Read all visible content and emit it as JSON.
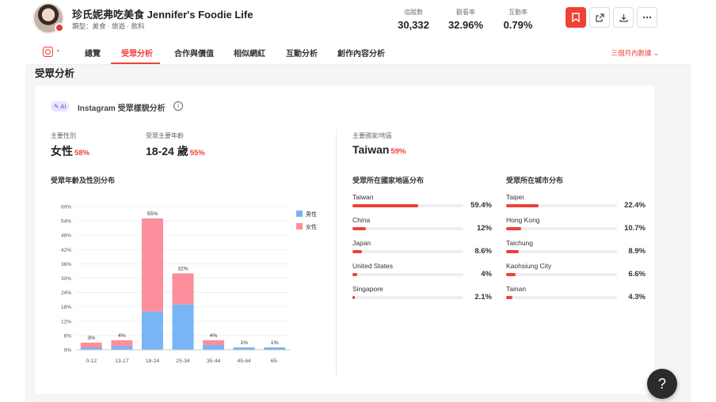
{
  "header": {
    "name": "珍氏妮弗吃美食 Jennifer's Foodie Life",
    "category": "類型：美食 · 旅遊 · 飲料",
    "stats": [
      {
        "label": "追蹤數",
        "value": "30,332"
      },
      {
        "label": "觀看率",
        "value": "32.96%"
      },
      {
        "label": "互動率",
        "value": "0.79%"
      }
    ],
    "buttons": [
      "bookmark-icon",
      "external-link-icon",
      "download-icon",
      "more-icon"
    ]
  },
  "tabs": {
    "platform_icon": "instagram-icon",
    "dropdown": "⌄",
    "items": [
      "總覽",
      "受眾分析",
      "合作與價值",
      "相似網紅",
      "互動分析",
      "創作內容分析"
    ],
    "active": 1,
    "period": "三個月內數據 ⌄"
  },
  "section": {
    "title": "受眾分析",
    "ai_badge": "AI",
    "card_title": "Instagram 受眾樣貌分析",
    "info": "i",
    "summary": {
      "gender_label": "主要性別",
      "gender_value": "女性",
      "gender_pct": "58%",
      "age_label": "受眾主要年齡",
      "age_value": "18-24 歲",
      "age_pct": "55%",
      "country_label": "主要國家/地區",
      "country_value": "Taiwan",
      "country_pct": "59%"
    },
    "chart_title": "受眾年齡及性別分布",
    "country_title": "受眾所在國家地區分布",
    "city_title": "受眾所在城市分布",
    "countries": [
      {
        "name": "Taiwan",
        "pct": "59.4%",
        "value": 59.4
      },
      {
        "name": "China",
        "pct": "12%",
        "value": 12
      },
      {
        "name": "Japan",
        "pct": "8.6%",
        "value": 8.6
      },
      {
        "name": "United States",
        "pct": "4%",
        "value": 4
      },
      {
        "name": "Singapore",
        "pct": "2.1%",
        "value": 2.1
      }
    ],
    "cities": [
      {
        "name": "Taipei",
        "pct": "22.4%",
        "value": 22.4
      },
      {
        "name": "Hong Kong",
        "pct": "10.7%",
        "value": 10.7
      },
      {
        "name": "Taichung",
        "pct": "8.9%",
        "value": 8.9
      },
      {
        "name": "Kaohsiung City",
        "pct": "6.6%",
        "value": 6.6
      },
      {
        "name": "Tainan",
        "pct": "4.3%",
        "value": 4.3
      }
    ],
    "help": "?"
  },
  "chart_data": {
    "type": "bar",
    "stacked": true,
    "categories": [
      "0-12",
      "13-17",
      "18-24",
      "25-34",
      "35-44",
      "45-64",
      "65-"
    ],
    "series": [
      {
        "name": "男性",
        "color": "#78b5f7",
        "values": [
          1,
          1.5,
          16,
          19,
          2,
          1,
          1
        ]
      },
      {
        "name": "女性",
        "color": "#fb8f9c",
        "values": [
          2,
          2.5,
          39,
          13,
          2,
          0,
          0
        ]
      }
    ],
    "totals": [
      "3%",
      "4%",
      "55%",
      "32%",
      "4%",
      "1%",
      "1%"
    ],
    "ylim": [
      0,
      60
    ],
    "yticks": [
      "0%",
      "6%",
      "12%",
      "18%",
      "24%",
      "30%",
      "36%",
      "42%",
      "48%",
      "54%",
      "60%"
    ],
    "legend": "top-right"
  }
}
